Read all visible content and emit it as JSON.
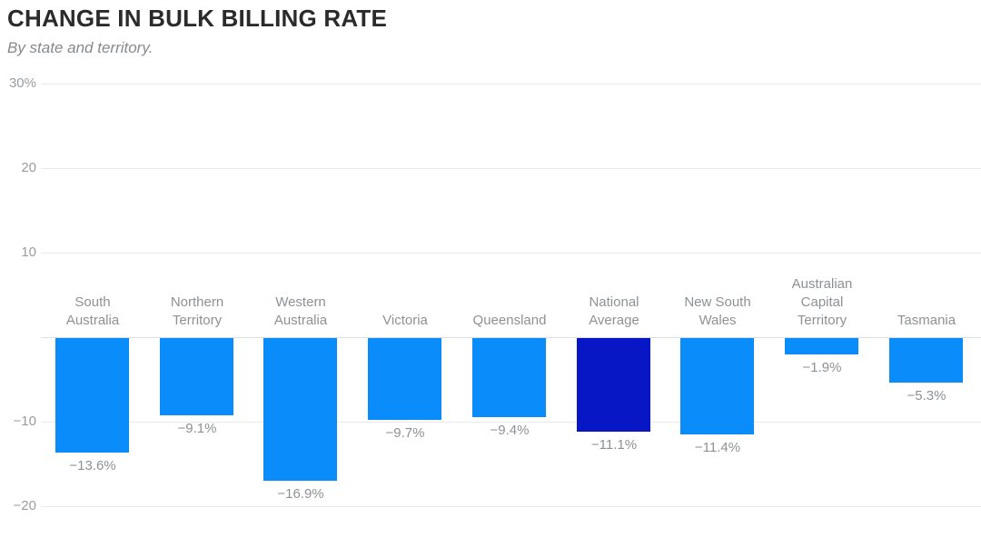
{
  "chart_data": {
    "type": "bar",
    "title": "CHANGE IN BULK BILLING RATE",
    "subtitle": "By state and territory.",
    "unit": "%",
    "categories": [
      "South Australia",
      "Northern Territory",
      "Western Australia",
      "Victoria",
      "Queensland",
      "National Average",
      "New South Wales",
      "Australian Capital Territory",
      "Tasmania"
    ],
    "label_lines": [
      [
        "South",
        "Australia"
      ],
      [
        "Northern",
        "Territory"
      ],
      [
        "Western",
        "Australia"
      ],
      [
        "Victoria"
      ],
      [
        "Queensland"
      ],
      [
        "National",
        "Average"
      ],
      [
        "New South",
        "Wales"
      ],
      [
        "Australian",
        "Capital",
        "Territory"
      ],
      [
        "Tasmania"
      ]
    ],
    "values": [
      -13.6,
      -9.1,
      -16.9,
      -9.7,
      -9.4,
      -11.1,
      -11.4,
      -1.9,
      -5.3
    ],
    "value_labels": [
      "−13.6%",
      "−9.1%",
      "−16.9%",
      "−9.7%",
      "−9.4%",
      "−11.1%",
      "−11.4%",
      "−1.9%",
      "−5.3%"
    ],
    "highlight_index": 5,
    "xlabel": "",
    "ylabel": "",
    "ylim": [
      -20,
      30
    ],
    "yticks": [
      {
        "value": 30,
        "label": "30%"
      },
      {
        "value": 20,
        "label": "20"
      },
      {
        "value": 10,
        "label": "10"
      },
      {
        "value": 0,
        "label": ""
      },
      {
        "value": -10,
        "label": "−10"
      },
      {
        "value": -20,
        "label": "−20"
      }
    ],
    "grid": true,
    "legend": "none",
    "colors": {
      "bar": "#0a8cfa",
      "highlight": "#0817c5",
      "gridline": "#e9e9e9",
      "zero_line": "#dedede",
      "title_text": "#2b2b2b",
      "subtitle_text": "#87898c",
      "label_text": "#8e9194"
    }
  }
}
